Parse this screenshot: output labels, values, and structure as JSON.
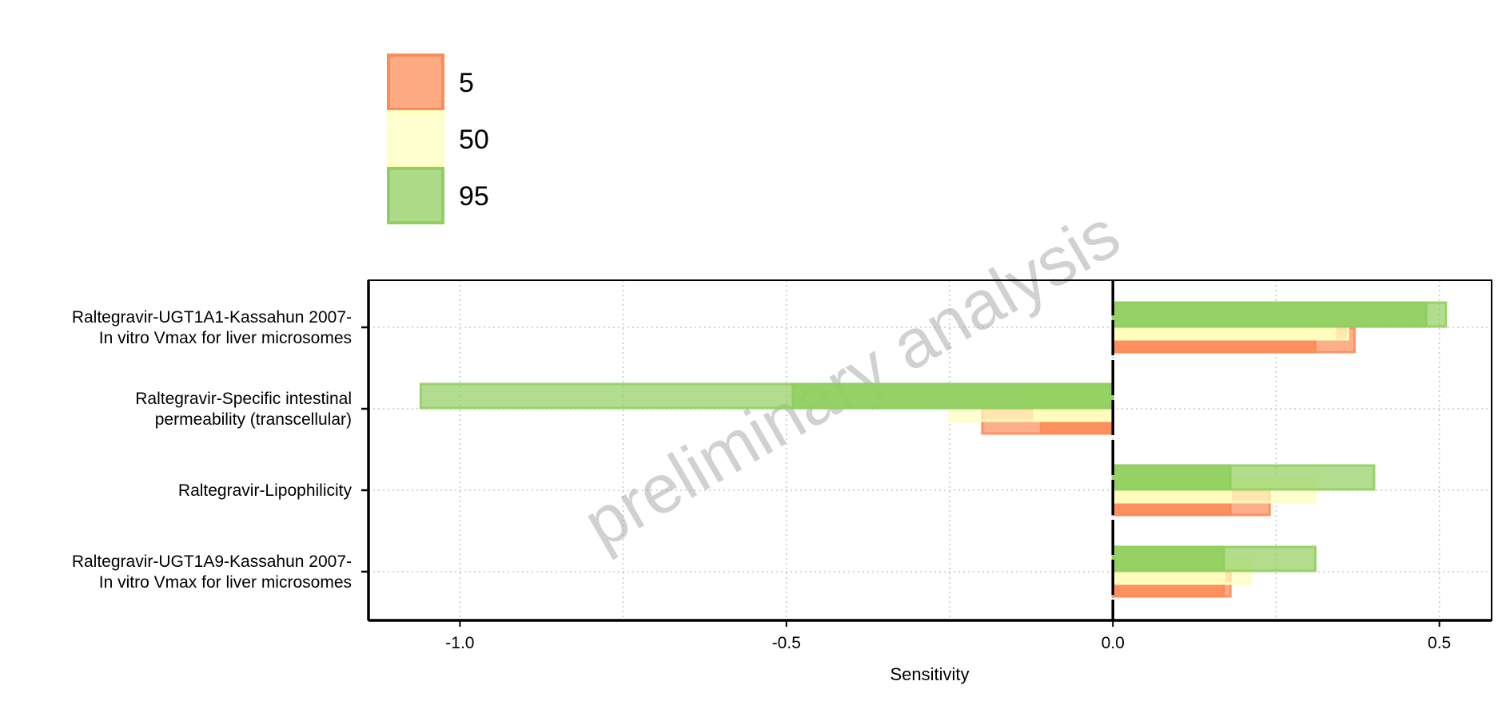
{
  "chart_data": {
    "type": "bar",
    "orientation": "horizontal",
    "xlabel": "Sensitivity",
    "ylabel": "",
    "xlim": [
      -1.14,
      0.58
    ],
    "x_ticks": [
      -1.0,
      -0.5,
      0.0,
      0.5
    ],
    "x_tick_labels": [
      "-1.0",
      "-0.5",
      "0.0",
      "0.5"
    ],
    "grid": "dotted",
    "legend_position": "top-left",
    "watermark": "preliminary analysis",
    "categories": [
      [
        "Raltegravir-UGT1A1-Kassahun 2007-",
        "In vitro Vmax for liver microsomes"
      ],
      [
        "Raltegravir-Specific intestinal",
        "permeability (transcellular)"
      ],
      [
        "Raltegravir-Lipophilicity"
      ],
      [
        "Raltegravir-UGT1A9-Kassahun 2007-",
        "In vitro Vmax for liver microsomes"
      ]
    ],
    "series": [
      {
        "name": "5",
        "color": "#fc8d59",
        "dark_values": [
          0.31,
          -0.11,
          0.18,
          0.17
        ],
        "light_values": [
          0.37,
          -0.2,
          0.24,
          0.18
        ]
      },
      {
        "name": "50",
        "color": "#ffffbf",
        "dark_values": [
          0.34,
          -0.12,
          0.18,
          0.17
        ],
        "light_values": [
          0.36,
          -0.25,
          0.31,
          0.21
        ]
      },
      {
        "name": "95",
        "color": "#91cf60",
        "dark_values": [
          0.48,
          -0.49,
          0.18,
          0.17
        ],
        "light_values": [
          0.51,
          -1.06,
          0.4,
          0.31
        ]
      }
    ]
  }
}
